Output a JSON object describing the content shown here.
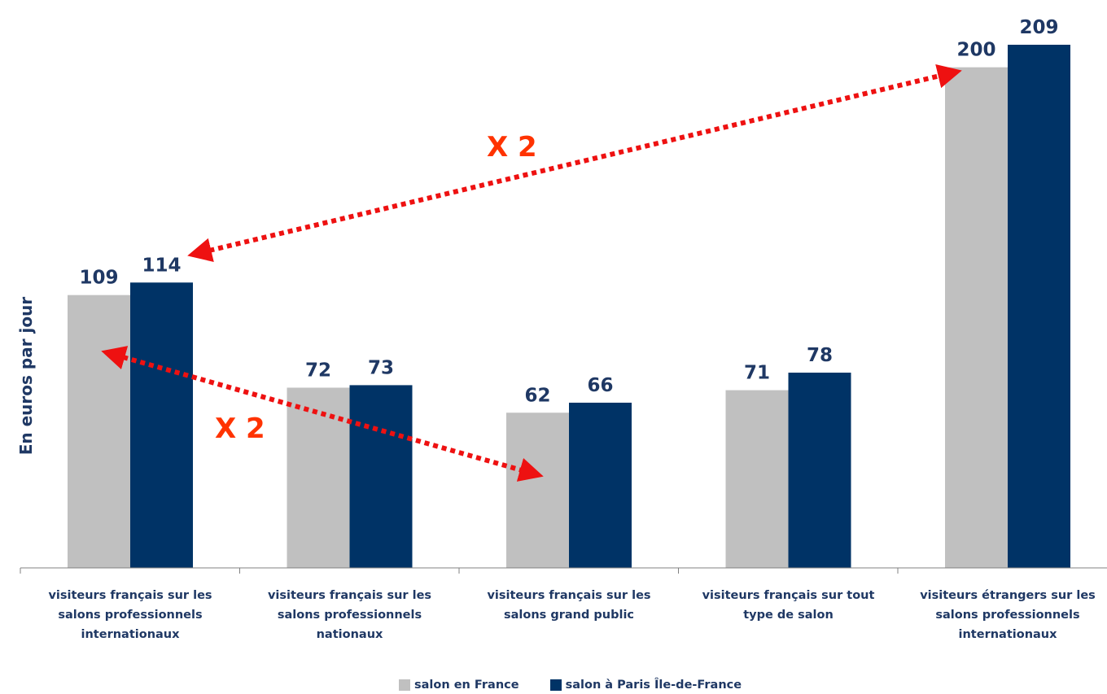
{
  "chart_data": {
    "type": "bar",
    "ylabel": "En euros par jour",
    "categories": [
      "visiteurs français sur les salons professionnels internationaux",
      "visiteurs français sur les salons professionnels nationaux",
      "visiteurs français sur les salons grand public",
      "visiteurs français sur tout type de salon",
      "visiteurs étrangers sur les salons professionnels internationaux"
    ],
    "series": [
      {
        "name": "salon en France",
        "color": "#c0c0c0",
        "values": [
          109,
          72,
          62,
          71,
          200
        ]
      },
      {
        "name": "salon à Paris Île-de-France",
        "color": "#003366",
        "values": [
          114,
          73,
          66,
          78,
          209
        ]
      }
    ],
    "ylim": [
      0,
      209
    ],
    "grid": false,
    "legend_position": "bottom",
    "annotations": [
      {
        "text": "X 2",
        "color": "#ff3300"
      },
      {
        "text": "X 2",
        "color": "#ff3300"
      }
    ]
  }
}
